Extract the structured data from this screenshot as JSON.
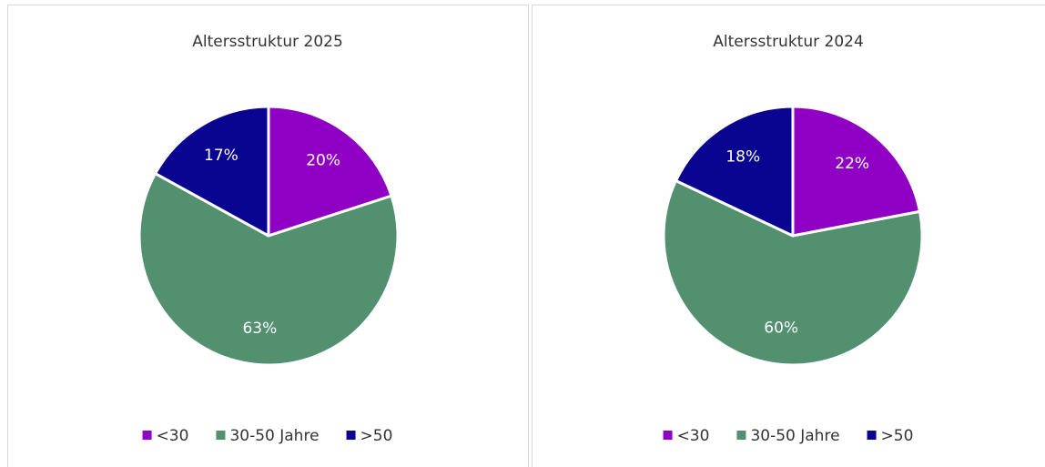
{
  "chart_data": [
    {
      "type": "pie",
      "title": "Altersstruktur 2025",
      "categories": [
        "<30",
        "30-50 Jahre",
        ">50"
      ],
      "values": [
        20,
        63,
        17
      ],
      "value_labels": [
        "20%",
        "63%",
        "17%"
      ],
      "colors": [
        "#9000c4",
        "#529070",
        "#0a0590"
      ],
      "legend": "bottom"
    },
    {
      "type": "pie",
      "title": "Altersstruktur 2024",
      "categories": [
        "<30",
        "30-50 Jahre",
        ">50"
      ],
      "values": [
        22,
        60,
        18
      ],
      "value_labels": [
        "22%",
        "60%",
        "18%"
      ],
      "colors": [
        "#9000c4",
        "#529070",
        "#0a0590"
      ],
      "legend": "bottom"
    }
  ]
}
